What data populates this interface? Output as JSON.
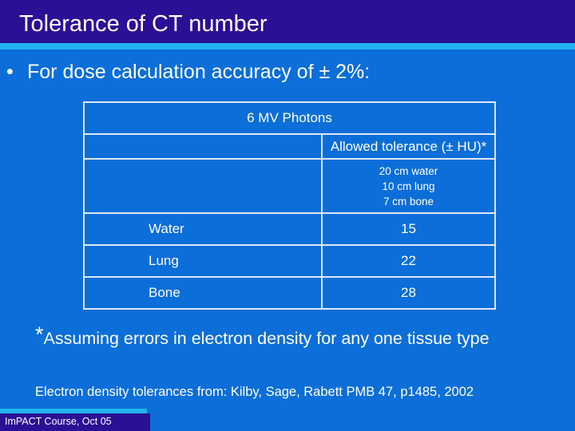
{
  "slide": {
    "title": "Tolerance of CT number",
    "bullet": {
      "marker": "•",
      "text": "For  dose calculation accuracy of ± 2%:"
    },
    "table": {
      "header": "6 MV Photons",
      "column_header": "Allowed tolerance (± HU)*",
      "geometry_lines": [
        "20 cm water",
        "10 cm lung",
        "7 cm bone"
      ],
      "rows": [
        {
          "tissue": "Water",
          "value": "15"
        },
        {
          "tissue": "Lung",
          "value": "22"
        },
        {
          "tissue": "Bone",
          "value": "28"
        }
      ]
    },
    "footnote": {
      "star": "*",
      "text": "Assuming errors in electron density for any one tissue type"
    },
    "source": "Electron density tolerances from: Kilby, Sage, Rabett PMB 47, p1485, 2002",
    "footer": "ImPACT Course, Oct 05"
  },
  "colors": {
    "background": "#0c6ed8",
    "title_bar": "#2b0f95",
    "accent": "#1fb4f0",
    "text": "#ffffff"
  }
}
